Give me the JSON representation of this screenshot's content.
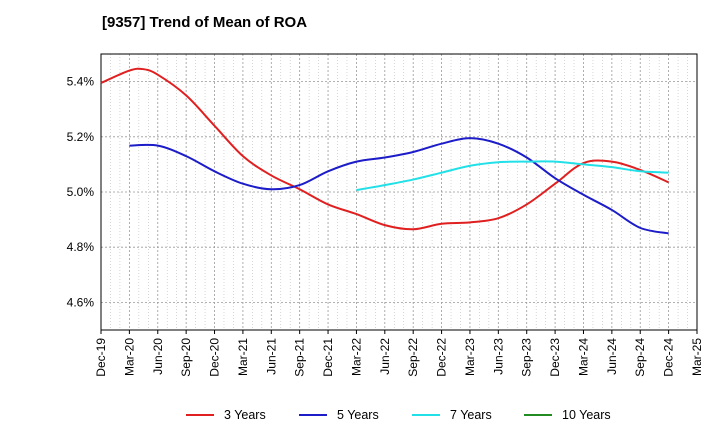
{
  "chart_data": {
    "type": "line",
    "title": "[9357]  Trend of Mean of ROA",
    "xlabel": "",
    "ylabel": "",
    "x_ticks": [
      "Dec-19",
      "Mar-20",
      "Jun-20",
      "Sep-20",
      "Dec-20",
      "Mar-21",
      "Jun-21",
      "Sep-21",
      "Dec-21",
      "Mar-22",
      "Jun-22",
      "Sep-22",
      "Dec-22",
      "Mar-23",
      "Jun-23",
      "Sep-23",
      "Dec-23",
      "Mar-24",
      "Jun-24",
      "Sep-24",
      "Dec-24",
      "Mar-25"
    ],
    "y_ticks": [
      "4.6%",
      "4.8%",
      "5.0%",
      "5.2%",
      "5.4%"
    ],
    "y_tick_values": [
      4.6,
      4.8,
      5.0,
      5.2,
      5.4
    ],
    "ylim": [
      4.5,
      5.5
    ],
    "grid": true,
    "legend_position": "bottom",
    "series": [
      {
        "name": "3 Years",
        "color": "#e02020",
        "points": [
          [
            0,
            5.395
          ],
          [
            1,
            5.44
          ],
          [
            1.5,
            5.445
          ],
          [
            2,
            5.425
          ],
          [
            3,
            5.35
          ],
          [
            4,
            5.24
          ],
          [
            5,
            5.13
          ],
          [
            6,
            5.06
          ],
          [
            7,
            5.01
          ],
          [
            8,
            4.955
          ],
          [
            9,
            4.92
          ],
          [
            10,
            4.88
          ],
          [
            11,
            4.865
          ],
          [
            12,
            4.885
          ],
          [
            13,
            4.89
          ],
          [
            14,
            4.905
          ],
          [
            15,
            4.955
          ],
          [
            16,
            5.03
          ],
          [
            17,
            5.105
          ],
          [
            18,
            5.11
          ],
          [
            19,
            5.08
          ],
          [
            20,
            5.035
          ]
        ]
      },
      {
        "name": "5 Years",
        "color": "#1c1cc8",
        "points": [
          [
            1,
            5.168
          ],
          [
            2,
            5.168
          ],
          [
            3,
            5.13
          ],
          [
            4,
            5.075
          ],
          [
            5,
            5.03
          ],
          [
            6,
            5.01
          ],
          [
            7,
            5.025
          ],
          [
            8,
            5.075
          ],
          [
            9,
            5.11
          ],
          [
            10,
            5.125
          ],
          [
            11,
            5.145
          ],
          [
            12,
            5.175
          ],
          [
            13,
            5.195
          ],
          [
            14,
            5.175
          ],
          [
            15,
            5.125
          ],
          [
            16,
            5.05
          ],
          [
            17,
            4.99
          ],
          [
            18,
            4.935
          ],
          [
            19,
            4.87
          ],
          [
            20,
            4.85
          ]
        ]
      },
      {
        "name": "7 Years",
        "color": "#22e0e8",
        "points": [
          [
            9,
            5.007
          ],
          [
            10,
            5.025
          ],
          [
            11,
            5.045
          ],
          [
            12,
            5.07
          ],
          [
            13,
            5.095
          ],
          [
            14,
            5.108
          ],
          [
            15,
            5.11
          ],
          [
            16,
            5.11
          ],
          [
            17,
            5.1
          ],
          [
            18,
            5.09
          ],
          [
            19,
            5.075
          ],
          [
            20,
            5.07
          ]
        ]
      },
      {
        "name": "10 Years",
        "color": "#228b22",
        "points": []
      }
    ]
  }
}
